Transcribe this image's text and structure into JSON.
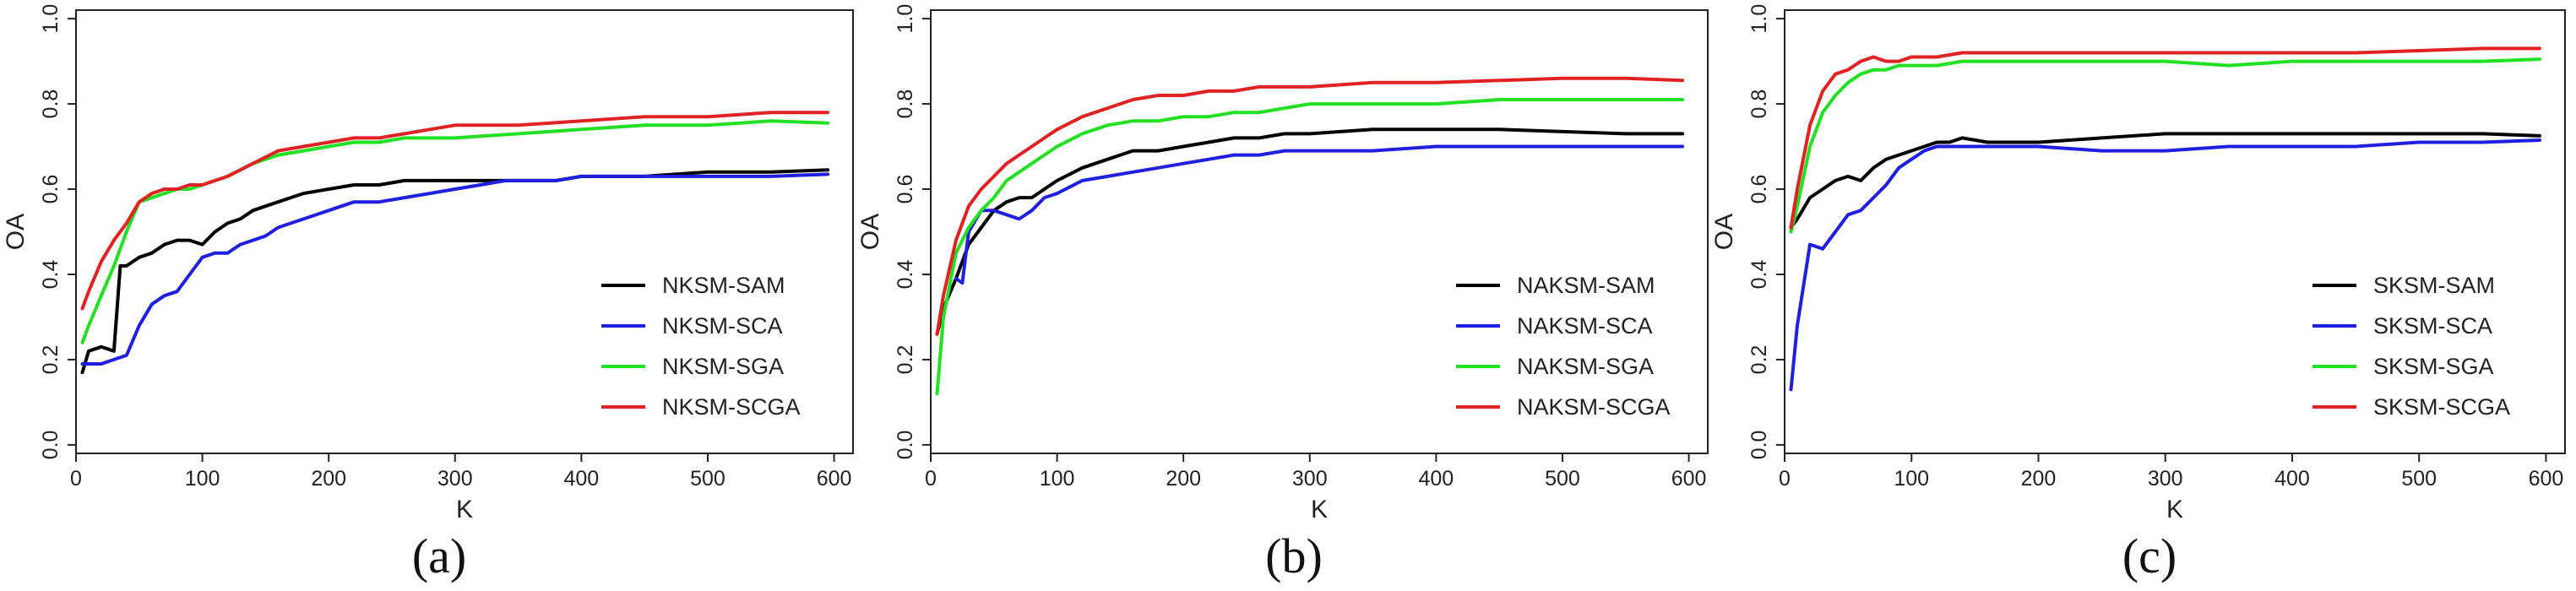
{
  "chart_data": [
    {
      "type": "line",
      "caption": "(a)",
      "xlabel": "K",
      "ylabel": "OA",
      "xlim": [
        0,
        615
      ],
      "ylim": [
        -0.02,
        1.02
      ],
      "x_ticks": [
        0,
        100,
        200,
        300,
        400,
        500,
        600
      ],
      "y_ticks": [
        0.0,
        0.2,
        0.4,
        0.6,
        0.8,
        1.0
      ],
      "y_tick_labels": [
        "0.0",
        "0.2",
        "0.4",
        "0.6",
        "0.8",
        "1.0"
      ],
      "legend_position": "bottom-right",
      "grid": false,
      "series": [
        {
          "name": "NKSM-SAM",
          "color": "#000000",
          "x": [
            5,
            10,
            20,
            30,
            35,
            40,
            50,
            60,
            70,
            80,
            90,
            100,
            110,
            120,
            130,
            140,
            150,
            160,
            170,
            180,
            200,
            220,
            240,
            260,
            280,
            300,
            320,
            340,
            360,
            380,
            400,
            450,
            500,
            550,
            595
          ],
          "y": [
            0.17,
            0.22,
            0.23,
            0.22,
            0.42,
            0.42,
            0.44,
            0.45,
            0.47,
            0.48,
            0.48,
            0.47,
            0.5,
            0.52,
            0.53,
            0.55,
            0.56,
            0.57,
            0.58,
            0.59,
            0.6,
            0.61,
            0.61,
            0.62,
            0.62,
            0.62,
            0.62,
            0.62,
            0.62,
            0.62,
            0.63,
            0.63,
            0.64,
            0.64,
            0.645
          ]
        },
        {
          "name": "NKSM-SCA",
          "color": "#1f1fe0",
          "x": [
            5,
            10,
            20,
            30,
            40,
            50,
            60,
            70,
            80,
            90,
            100,
            110,
            120,
            130,
            140,
            150,
            160,
            170,
            180,
            200,
            220,
            240,
            260,
            280,
            300,
            320,
            340,
            360,
            380,
            400,
            450,
            500,
            550,
            595
          ],
          "y": [
            0.19,
            0.19,
            0.19,
            0.2,
            0.21,
            0.28,
            0.33,
            0.35,
            0.36,
            0.4,
            0.44,
            0.45,
            0.45,
            0.47,
            0.48,
            0.49,
            0.51,
            0.52,
            0.53,
            0.55,
            0.57,
            0.57,
            0.58,
            0.59,
            0.6,
            0.61,
            0.62,
            0.62,
            0.62,
            0.63,
            0.63,
            0.63,
            0.63,
            0.635
          ]
        },
        {
          "name": "NKSM-SGA",
          "color": "#22e022",
          "x": [
            5,
            10,
            20,
            30,
            40,
            50,
            60,
            70,
            80,
            90,
            100,
            120,
            140,
            160,
            180,
            200,
            220,
            240,
            260,
            280,
            300,
            350,
            400,
            450,
            500,
            550,
            595
          ],
          "y": [
            0.24,
            0.28,
            0.35,
            0.42,
            0.5,
            0.57,
            0.58,
            0.59,
            0.6,
            0.6,
            0.61,
            0.63,
            0.66,
            0.68,
            0.69,
            0.7,
            0.71,
            0.71,
            0.72,
            0.72,
            0.72,
            0.73,
            0.74,
            0.75,
            0.75,
            0.76,
            0.755
          ]
        },
        {
          "name": "NKSM-SCGA",
          "color": "#e02222",
          "x": [
            5,
            10,
            20,
            30,
            40,
            50,
            60,
            70,
            80,
            90,
            100,
            120,
            140,
            160,
            180,
            200,
            220,
            240,
            260,
            280,
            300,
            350,
            400,
            450,
            500,
            550,
            595
          ],
          "y": [
            0.32,
            0.36,
            0.43,
            0.48,
            0.52,
            0.57,
            0.59,
            0.6,
            0.6,
            0.61,
            0.61,
            0.63,
            0.66,
            0.69,
            0.7,
            0.71,
            0.72,
            0.72,
            0.73,
            0.74,
            0.75,
            0.75,
            0.76,
            0.77,
            0.77,
            0.78,
            0.78
          ]
        }
      ]
    },
    {
      "type": "line",
      "caption": "(b)",
      "xlabel": "K",
      "ylabel": "OA",
      "xlim": [
        0,
        615
      ],
      "ylim": [
        -0.02,
        1.02
      ],
      "x_ticks": [
        0,
        100,
        200,
        300,
        400,
        500,
        600
      ],
      "y_ticks": [
        0.0,
        0.2,
        0.4,
        0.6,
        0.8,
        1.0
      ],
      "y_tick_labels": [
        "0.0",
        "0.2",
        "0.4",
        "0.6",
        "0.8",
        "1.0"
      ],
      "legend_position": "bottom-right",
      "grid": false,
      "series": [
        {
          "name": "NAKSM-SAM",
          "color": "#000000",
          "x": [
            5,
            10,
            20,
            30,
            40,
            50,
            60,
            70,
            80,
            90,
            100,
            120,
            140,
            160,
            180,
            200,
            220,
            240,
            260,
            280,
            300,
            350,
            400,
            450,
            500,
            550,
            595
          ],
          "y": [
            0.26,
            0.32,
            0.39,
            0.47,
            0.51,
            0.55,
            0.57,
            0.58,
            0.58,
            0.6,
            0.62,
            0.65,
            0.67,
            0.69,
            0.69,
            0.7,
            0.71,
            0.72,
            0.72,
            0.73,
            0.73,
            0.74,
            0.74,
            0.74,
            0.735,
            0.73,
            0.73
          ]
        },
        {
          "name": "NAKSM-SCA",
          "color": "#1f1fe0",
          "x": [
            20,
            25,
            30,
            40,
            50,
            60,
            70,
            80,
            90,
            100,
            120,
            140,
            160,
            180,
            200,
            220,
            240,
            260,
            280,
            300,
            350,
            400,
            450,
            500,
            550,
            595
          ],
          "y": [
            0.39,
            0.38,
            0.5,
            0.55,
            0.55,
            0.54,
            0.53,
            0.55,
            0.58,
            0.59,
            0.62,
            0.63,
            0.64,
            0.65,
            0.66,
            0.67,
            0.68,
            0.68,
            0.69,
            0.69,
            0.69,
            0.7,
            0.7,
            0.7,
            0.7,
            0.7
          ]
        },
        {
          "name": "NAKSM-SGA",
          "color": "#22e022",
          "x": [
            5,
            10,
            20,
            30,
            40,
            50,
            60,
            70,
            80,
            90,
            100,
            120,
            140,
            160,
            180,
            200,
            220,
            240,
            260,
            280,
            300,
            350,
            400,
            450,
            500,
            550,
            595
          ],
          "y": [
            0.12,
            0.3,
            0.45,
            0.51,
            0.55,
            0.58,
            0.62,
            0.64,
            0.66,
            0.68,
            0.7,
            0.73,
            0.75,
            0.76,
            0.76,
            0.77,
            0.77,
            0.78,
            0.78,
            0.79,
            0.8,
            0.8,
            0.8,
            0.81,
            0.81,
            0.81,
            0.81
          ]
        },
        {
          "name": "NAKSM-SCGA",
          "color": "#e02222",
          "x": [
            5,
            10,
            20,
            30,
            40,
            50,
            60,
            70,
            80,
            90,
            100,
            120,
            140,
            160,
            180,
            200,
            220,
            240,
            260,
            280,
            300,
            350,
            400,
            450,
            500,
            550,
            595
          ],
          "y": [
            0.26,
            0.35,
            0.48,
            0.56,
            0.6,
            0.63,
            0.66,
            0.68,
            0.7,
            0.72,
            0.74,
            0.77,
            0.79,
            0.81,
            0.82,
            0.82,
            0.83,
            0.83,
            0.84,
            0.84,
            0.84,
            0.85,
            0.85,
            0.855,
            0.86,
            0.86,
            0.855
          ]
        }
      ]
    },
    {
      "type": "line",
      "caption": "(c)",
      "xlabel": "K",
      "ylabel": "OA",
      "xlim": [
        0,
        615
      ],
      "ylim": [
        -0.02,
        1.02
      ],
      "x_ticks": [
        0,
        100,
        200,
        300,
        400,
        500,
        600
      ],
      "y_ticks": [
        0.0,
        0.2,
        0.4,
        0.6,
        0.8,
        1.0
      ],
      "y_tick_labels": [
        "0.0",
        "0.2",
        "0.4",
        "0.6",
        "0.8",
        "1.0"
      ],
      "legend_position": "bottom-right",
      "grid": false,
      "series": [
        {
          "name": "SKSM-SAM",
          "color": "#000000",
          "x": [
            5,
            10,
            20,
            30,
            40,
            50,
            60,
            70,
            80,
            90,
            100,
            110,
            120,
            130,
            140,
            160,
            180,
            200,
            250,
            300,
            350,
            400,
            450,
            500,
            550,
            595
          ],
          "y": [
            0.51,
            0.53,
            0.58,
            0.6,
            0.62,
            0.63,
            0.62,
            0.65,
            0.67,
            0.68,
            0.69,
            0.7,
            0.71,
            0.71,
            0.72,
            0.71,
            0.71,
            0.71,
            0.72,
            0.73,
            0.73,
            0.73,
            0.73,
            0.73,
            0.73,
            0.725
          ]
        },
        {
          "name": "SKSM-SCA",
          "color": "#1f1fe0",
          "x": [
            5,
            10,
            20,
            30,
            40,
            50,
            60,
            70,
            80,
            90,
            100,
            110,
            120,
            130,
            140,
            160,
            180,
            200,
            250,
            300,
            350,
            400,
            450,
            500,
            550,
            595
          ],
          "y": [
            0.13,
            0.28,
            0.47,
            0.46,
            0.5,
            0.54,
            0.55,
            0.58,
            0.61,
            0.65,
            0.67,
            0.69,
            0.7,
            0.7,
            0.7,
            0.7,
            0.7,
            0.7,
            0.69,
            0.69,
            0.7,
            0.7,
            0.7,
            0.71,
            0.71,
            0.715
          ]
        },
        {
          "name": "SKSM-SGA",
          "color": "#22e022",
          "x": [
            5,
            10,
            20,
            30,
            40,
            50,
            60,
            70,
            80,
            90,
            100,
            120,
            140,
            160,
            180,
            200,
            250,
            300,
            350,
            400,
            450,
            500,
            550,
            595
          ],
          "y": [
            0.5,
            0.56,
            0.7,
            0.78,
            0.82,
            0.85,
            0.87,
            0.88,
            0.88,
            0.89,
            0.89,
            0.89,
            0.9,
            0.9,
            0.9,
            0.9,
            0.9,
            0.9,
            0.89,
            0.9,
            0.9,
            0.9,
            0.9,
            0.905
          ]
        },
        {
          "name": "SKSM-SCGA",
          "color": "#e02222",
          "x": [
            5,
            10,
            20,
            30,
            40,
            50,
            60,
            70,
            80,
            90,
            100,
            120,
            140,
            160,
            180,
            200,
            250,
            300,
            350,
            400,
            450,
            500,
            550,
            595
          ],
          "y": [
            0.51,
            0.6,
            0.75,
            0.83,
            0.87,
            0.88,
            0.9,
            0.91,
            0.9,
            0.9,
            0.91,
            0.91,
            0.92,
            0.92,
            0.92,
            0.92,
            0.92,
            0.92,
            0.92,
            0.92,
            0.92,
            0.925,
            0.93,
            0.93
          ]
        }
      ]
    }
  ]
}
